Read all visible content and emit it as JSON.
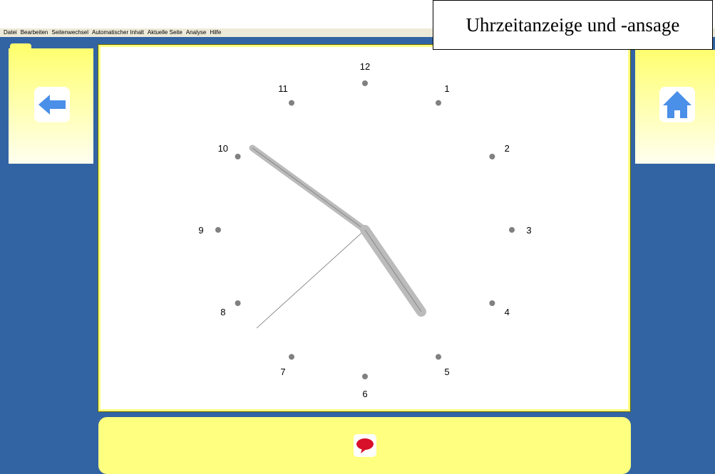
{
  "menu": [
    "Datei",
    "Bearbeiten",
    "Seitenwechsel",
    "Automatischer Inhalt",
    "Aktuelle Seite",
    "Analyse",
    "Hilfe"
  ],
  "title": "Uhrzeitanzeige und -ansage",
  "clock": {
    "numbers": [
      "1",
      "2",
      "3",
      "4",
      "5",
      "6",
      "7",
      "8",
      "9",
      "10",
      "11",
      "12"
    ]
  }
}
